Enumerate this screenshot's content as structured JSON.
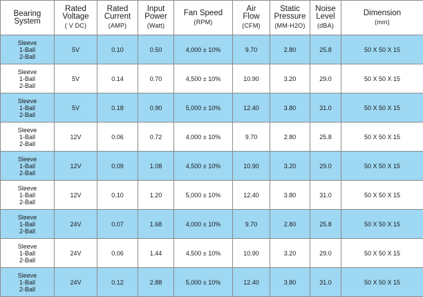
{
  "columns": [
    {
      "title": [
        "Bearing",
        "System"
      ],
      "unit": ""
    },
    {
      "title": [
        "Rated",
        "Voltage"
      ],
      "unit": "( V DC)"
    },
    {
      "title": [
        "Rated",
        "Current"
      ],
      "unit": "(AMP)"
    },
    {
      "title": [
        "Input",
        "Power"
      ],
      "unit": "(Watt)"
    },
    {
      "title": [
        "Fan Speed"
      ],
      "unit": "(RPM)"
    },
    {
      "title": [
        "Air",
        "Flow"
      ],
      "unit": "(CFM)"
    },
    {
      "title": [
        "Static",
        "Pressure"
      ],
      "unit": "(MM-H2O)"
    },
    {
      "title": [
        "Noise",
        "Level"
      ],
      "unit": "(dBA)"
    },
    {
      "title": [
        "Dimension"
      ],
      "unit": "(mm)"
    }
  ],
  "rows": [
    {
      "bearing": [
        "Sleeve",
        "1-Ball",
        "2-Ball"
      ],
      "voltage": "5V",
      "current": "0.10",
      "power": "0.50",
      "speed": "4,000 ± 10%",
      "airflow": "9.70",
      "pressure": "2.80",
      "noise": "25.8",
      "dimension": "50 X 50 X 15"
    },
    {
      "bearing": [
        "Sleeve",
        "1-Ball",
        "2-Ball"
      ],
      "voltage": "5V",
      "current": "0.14",
      "power": "0.70",
      "speed": "4,500 ± 10%",
      "airflow": "10.90",
      "pressure": "3.20",
      "noise": "29.0",
      "dimension": "50 X 50 X 15"
    },
    {
      "bearing": [
        "Sleeve",
        "1-Ball",
        "2-Ball"
      ],
      "voltage": "5V",
      "current": "0.18",
      "power": "0.90",
      "speed": "5,000 ± 10%",
      "airflow": "12.40",
      "pressure": "3.80",
      "noise": "31.0",
      "dimension": "50 X 50 X 15"
    },
    {
      "bearing": [
        "Sleeve",
        "1-Ball",
        "2-Ball"
      ],
      "voltage": "12V",
      "current": "0.06",
      "power": "0.72",
      "speed": "4,000 ± 10%",
      "airflow": "9.70",
      "pressure": "2.80",
      "noise": "25.8",
      "dimension": "50 X 50 X 15"
    },
    {
      "bearing": [
        "Sleeve",
        "1-Ball",
        "2-Ball"
      ],
      "voltage": "12V",
      "current": "0.09",
      "power": "1.08",
      "speed": "4,500 ± 10%",
      "airflow": "10.90",
      "pressure": "3.20",
      "noise": "29.0",
      "dimension": "50 X 50 X 15"
    },
    {
      "bearing": [
        "Sleeve",
        "1-Ball",
        "2-Ball"
      ],
      "voltage": "12V",
      "current": "0.10",
      "power": "1.20",
      "speed": "5,000 ± 10%",
      "airflow": "12.40",
      "pressure": "3.80",
      "noise": "31.0",
      "dimension": "50 X 50 X 15"
    },
    {
      "bearing": [
        "Sleeve",
        "1-Ball",
        "2-Ball"
      ],
      "voltage": "24V",
      "current": "0.07",
      "power": "1.68",
      "speed": "4,000 ± 10%",
      "airflow": "9.70",
      "pressure": "2.80",
      "noise": "25.8",
      "dimension": "50 X 50 X 15"
    },
    {
      "bearing": [
        "Sleeve",
        "1-Ball",
        "2-Ball"
      ],
      "voltage": "24V",
      "current": "0.06",
      "power": "1.44",
      "speed": "4,500 ± 10%",
      "airflow": "10.90",
      "pressure": "3.20",
      "noise": "29.0",
      "dimension": "50 X 50 X 15"
    },
    {
      "bearing": [
        "Sleeve",
        "1-Ball",
        "2-Ball"
      ],
      "voltage": "24V",
      "current": "0.12",
      "power": "2.88",
      "speed": "5,000 ± 10%",
      "airflow": "12.40",
      "pressure": "3.80",
      "noise": "31.0",
      "dimension": "50 X 50 X 15"
    }
  ],
  "colors": {
    "shaded_row": "#9ed8f3",
    "plain_row": "#ffffff",
    "grid": "#8a8a8a"
  }
}
